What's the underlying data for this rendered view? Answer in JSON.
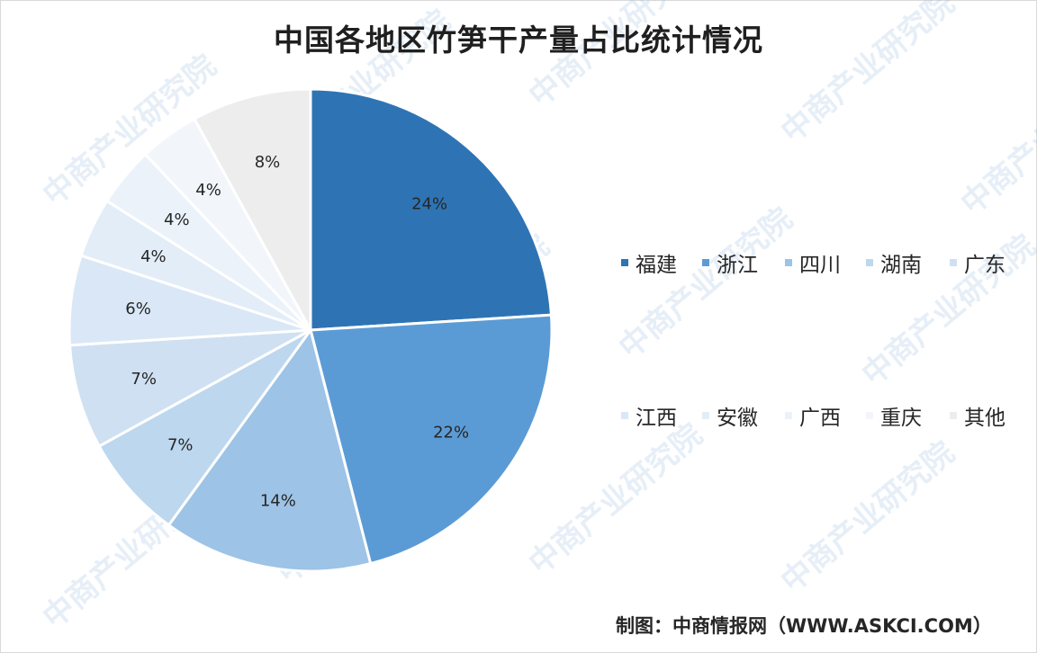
{
  "source_note": "制图：中商情报网（WWW.ASKCI.COM）",
  "watermark_text": "中商产业研究院",
  "chart_data": {
    "type": "pie",
    "title": "中国各地区竹笋干产量占比统计情况",
    "value_unit": "%",
    "legend_position": "right",
    "categories": [
      "福建",
      "浙江",
      "四川",
      "湖南",
      "广东",
      "江西",
      "安徽",
      "广西",
      "重庆",
      "其他"
    ],
    "values": [
      24,
      22,
      14,
      7,
      7,
      6,
      4,
      4,
      4,
      8
    ],
    "labels": [
      "24%",
      "22%",
      "14%",
      "7%",
      "7%",
      "6%",
      "4%",
      "4%",
      "4%",
      "8%"
    ],
    "colors": [
      "#2e74b5",
      "#5b9bd5",
      "#9dc3e6",
      "#bdd7ee",
      "#cfe0f2",
      "#d9e7f6",
      "#e2edf8",
      "#ebf2fa",
      "#f2f6fb",
      "#ededed"
    ]
  }
}
